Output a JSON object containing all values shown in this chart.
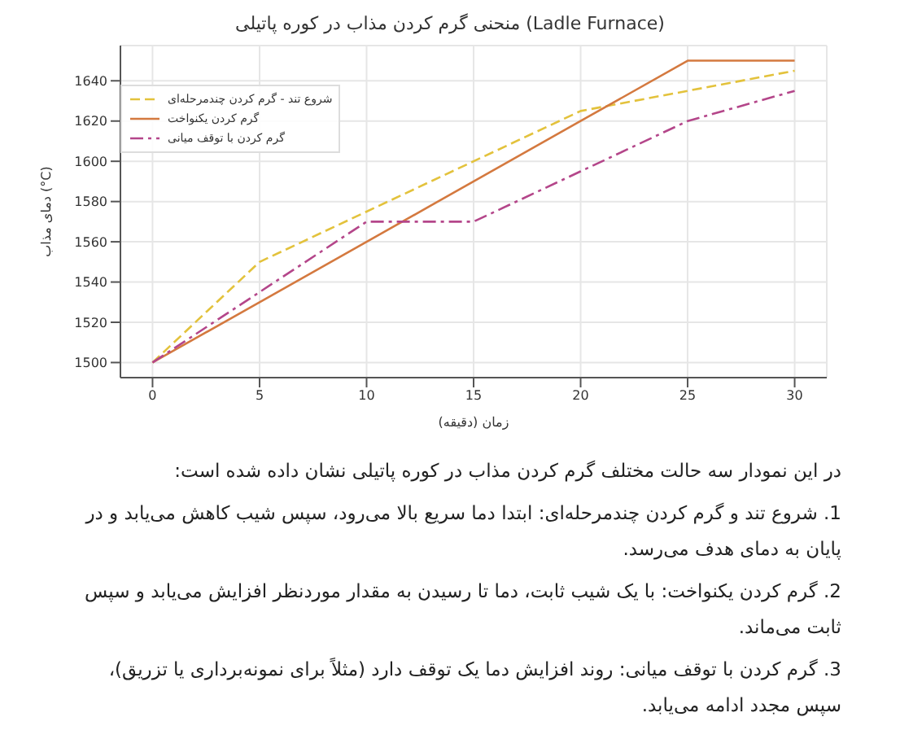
{
  "chart_data": {
    "type": "line",
    "title": "منحنی گرم کردن مذاب در کوره پاتیلی (Ladle Furnace)",
    "xlabel": "زمان (دقیقه)",
    "ylabel": "دمای مذاب (°C)",
    "x": [
      0,
      5,
      10,
      15,
      20,
      25,
      30
    ],
    "series": [
      {
        "name": "شروع تند - گرم کردن چندمرحله‌ای",
        "color": "#e3c23c",
        "line_style": "dashed",
        "values": [
          1500,
          1550,
          1575,
          1600,
          1625,
          1635,
          1645
        ]
      },
      {
        "name": "گرم کردن یکنواخت",
        "color": "#d4793f",
        "line_style": "solid",
        "values": [
          1500,
          1530,
          1560,
          1590,
          1620,
          1650,
          1650
        ]
      },
      {
        "name": "گرم کردن با توقف میانی",
        "color": "#b4468a",
        "line_style": "dashdot",
        "values": [
          1500,
          1535,
          1570,
          1570,
          1595,
          1620,
          1635
        ]
      }
    ],
    "xlim": [
      -1.5,
      31.5
    ],
    "xticks": [
      0,
      5,
      10,
      15,
      20,
      25,
      30
    ],
    "ylim": [
      1492.5,
      1657.5
    ],
    "yticks": [
      1500,
      1520,
      1540,
      1560,
      1580,
      1600,
      1620,
      1640
    ],
    "grid": true,
    "legend": "top left",
    "marker": "none",
    "annotations": [
      "در این نمودار سه حالت مختلف گرم کردن مذاب در کوره پاتیلی نشان داده شده است:",
      "1. شروع تند و گرم کردن چندمرحله‌ای: ابتدا دما سریع بالا می‌رود، سپس شیب کاهش می‌یابد و در پایان به دمای هدف می‌رسد.",
      "2. گرم کردن یکنواخت: با یک شیب ثابت، دما تا رسیدن به مقدار موردنظر افزایش می‌یابد و سپس ثابت می‌ماند.",
      "3. گرم کردن با توقف میانی: روند افزایش دما یک توقف دارد (مثلاً برای نمونه‌برداری یا تزریق)، سپس مجدد ادامه می‌یابد."
    ]
  }
}
